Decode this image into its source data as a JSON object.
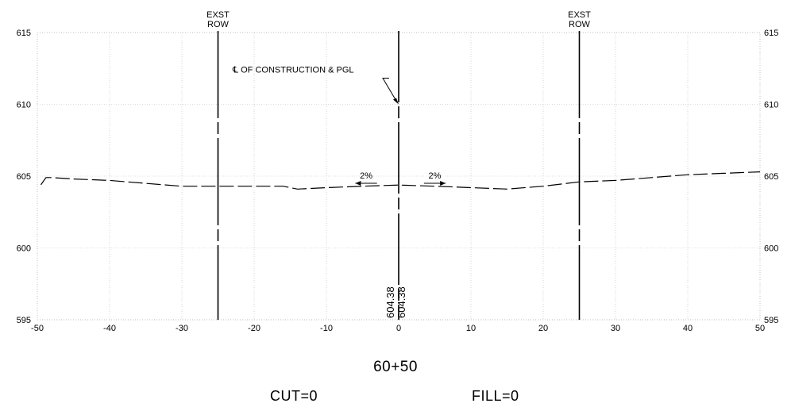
{
  "chart_data": {
    "type": "line",
    "xlim": [
      -50,
      50
    ],
    "ylim": [
      595,
      615
    ],
    "x_ticks": [
      "-50",
      "-40",
      "-30",
      "-20",
      "-10",
      "0",
      "10",
      "20",
      "30",
      "40",
      "50"
    ],
    "y_ticks": [
      "595",
      "600",
      "605",
      "610",
      "615"
    ],
    "grid": true,
    "series": [
      {
        "style": "dashed",
        "x": [
          -49.5,
          -48.8,
          -48.0,
          -45,
          -40,
          -35,
          -30,
          -25,
          -20,
          -16,
          -14,
          -10,
          -5,
          0,
          5,
          10,
          15,
          20,
          25,
          30,
          35,
          40,
          45,
          50
        ],
        "y": [
          604.4,
          604.9,
          604.9,
          604.8,
          604.7,
          604.5,
          604.3,
          604.3,
          604.3,
          604.3,
          604.1,
          604.2,
          604.3,
          604.38,
          604.3,
          604.2,
          604.1,
          604.3,
          604.6,
          604.7,
          604.9,
          605.1,
          605.2,
          605.3
        ]
      }
    ],
    "row_lines": [
      {
        "x": -25,
        "label_line1": "EXST",
        "label_line2": "ROW"
      },
      {
        "x": 25,
        "label_line1": "EXST",
        "label_line2": "ROW"
      }
    ],
    "centerline": {
      "x": 0,
      "label": "℄ OF CONSTRUCTION & PGL",
      "target_y": 610
    },
    "slopes": [
      {
        "label": "2%",
        "direction": "left",
        "x_start": -3,
        "x_end": -6,
        "y": 604.5
      },
      {
        "label": "2%",
        "direction": "right",
        "x_start": 3.5,
        "x_end": 6.5,
        "y": 604.5
      }
    ],
    "elevation_labels": [
      "604.38",
      "604.38"
    ]
  },
  "station": "60+50",
  "cut": "CUT=0",
  "fill": "FILL=0"
}
